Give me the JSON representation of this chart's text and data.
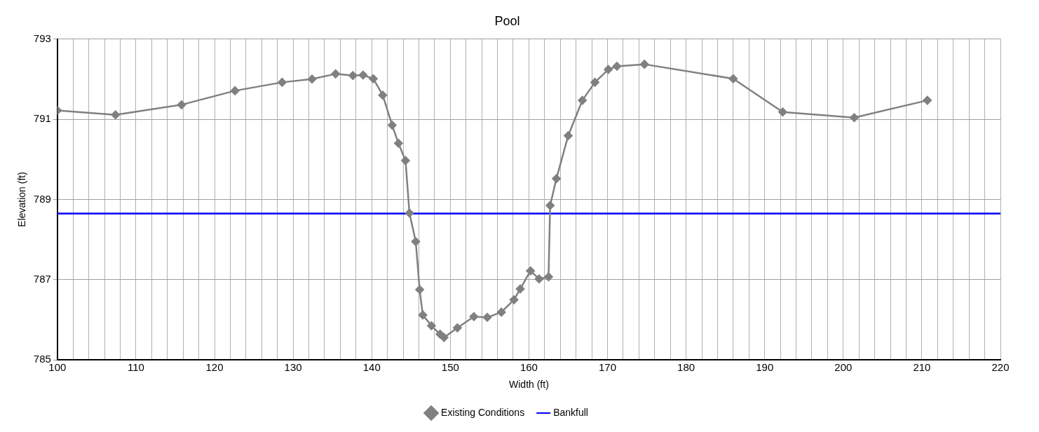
{
  "chart_data": {
    "type": "line",
    "title": "Pool",
    "xlabel": "Width (ft)",
    "ylabel": "Elevation (ft)",
    "xlim": [
      100,
      220
    ],
    "xticks": [
      100,
      {
        "value": 102,
        "label": null
      },
      {
        "value": 104,
        "label": null
      },
      {
        "value": 106,
        "label": null
      },
      {
        "value": 108,
        "label": null
      },
      110,
      {
        "value": 112,
        "label": null
      },
      {
        "value": 114,
        "label": null
      },
      {
        "value": 116,
        "label": null
      },
      {
        "value": 118,
        "label": null
      },
      120,
      {
        "value": 122,
        "label": null
      },
      {
        "value": 124,
        "label": null
      },
      {
        "value": 126,
        "label": null
      },
      {
        "value": 128,
        "label": null
      },
      130,
      {
        "value": 132,
        "label": null
      },
      {
        "value": 134,
        "label": null
      },
      {
        "value": 136,
        "label": null
      },
      {
        "value": 138,
        "label": null
      },
      140,
      {
        "value": 142,
        "label": null
      },
      {
        "value": 144,
        "label": null
      },
      {
        "value": 146,
        "label": null
      },
      {
        "value": 148,
        "label": null
      },
      150,
      {
        "value": 152,
        "label": null
      },
      {
        "value": 154,
        "label": null
      },
      {
        "value": 156,
        "label": null
      },
      {
        "value": 158,
        "label": null
      },
      160,
      {
        "value": 162,
        "label": null
      },
      {
        "value": 164,
        "label": null
      },
      {
        "value": 166,
        "label": null
      },
      {
        "value": 168,
        "label": null
      },
      170,
      {
        "value": 172,
        "label": null
      },
      {
        "value": 174,
        "label": null
      },
      {
        "value": 176,
        "label": null
      },
      {
        "value": 178,
        "label": null
      },
      180,
      {
        "value": 182,
        "label": null
      },
      {
        "value": 184,
        "label": null
      },
      {
        "value": 186,
        "label": null
      },
      {
        "value": 188,
        "label": null
      },
      190,
      {
        "value": 192,
        "label": null
      },
      {
        "value": 194,
        "label": null
      },
      {
        "value": 196,
        "label": null
      },
      {
        "value": 198,
        "label": null
      },
      200,
      {
        "value": 202,
        "label": null
      },
      {
        "value": 204,
        "label": null
      },
      {
        "value": 206,
        "label": null
      },
      {
        "value": 208,
        "label": null
      },
      210,
      {
        "value": 212,
        "label": null
      },
      {
        "value": 214,
        "label": null
      },
      {
        "value": 216,
        "label": null
      },
      {
        "value": 218,
        "label": null
      },
      220
    ],
    "ylim": [
      785,
      793
    ],
    "yticks": [
      785,
      787,
      789,
      791,
      793
    ],
    "grid": true,
    "legend": "bottom",
    "series": [
      {
        "name": "Existing Conditions",
        "color": "#808080",
        "marker": "diamond",
        "x": [
          100.0,
          107.4,
          115.8,
          122.6,
          128.6,
          132.4,
          135.4,
          137.6,
          138.9,
          140.2,
          141.4,
          142.6,
          143.4,
          144.3,
          144.8,
          145.6,
          146.1,
          146.5,
          147.6,
          148.7,
          149.2,
          150.9,
          153.0,
          154.7,
          156.5,
          158.1,
          158.9,
          160.2,
          161.3,
          162.5,
          162.7,
          163.5,
          165.0,
          166.8,
          168.4,
          170.1,
          171.2,
          174.7,
          186.0,
          192.3,
          201.4,
          210.7
        ],
        "values": [
          791.22,
          791.11,
          791.36,
          791.71,
          791.92,
          792.0,
          792.13,
          792.09,
          792.1,
          792.01,
          791.6,
          790.85,
          790.4,
          789.97,
          788.66,
          787.95,
          786.75,
          786.12,
          785.85,
          785.64,
          785.56,
          785.8,
          786.08,
          786.06,
          786.19,
          786.5,
          786.77,
          787.22,
          787.02,
          787.07,
          788.85,
          789.52,
          790.59,
          791.47,
          791.92,
          792.24,
          792.32,
          792.37,
          792.01,
          791.18,
          791.04,
          791.47
        ]
      },
      {
        "name": "Bankfull",
        "color": "#0000ff",
        "marker": "none",
        "x": [
          100,
          220
        ],
        "values": [
          788.65,
          788.65
        ]
      }
    ]
  }
}
